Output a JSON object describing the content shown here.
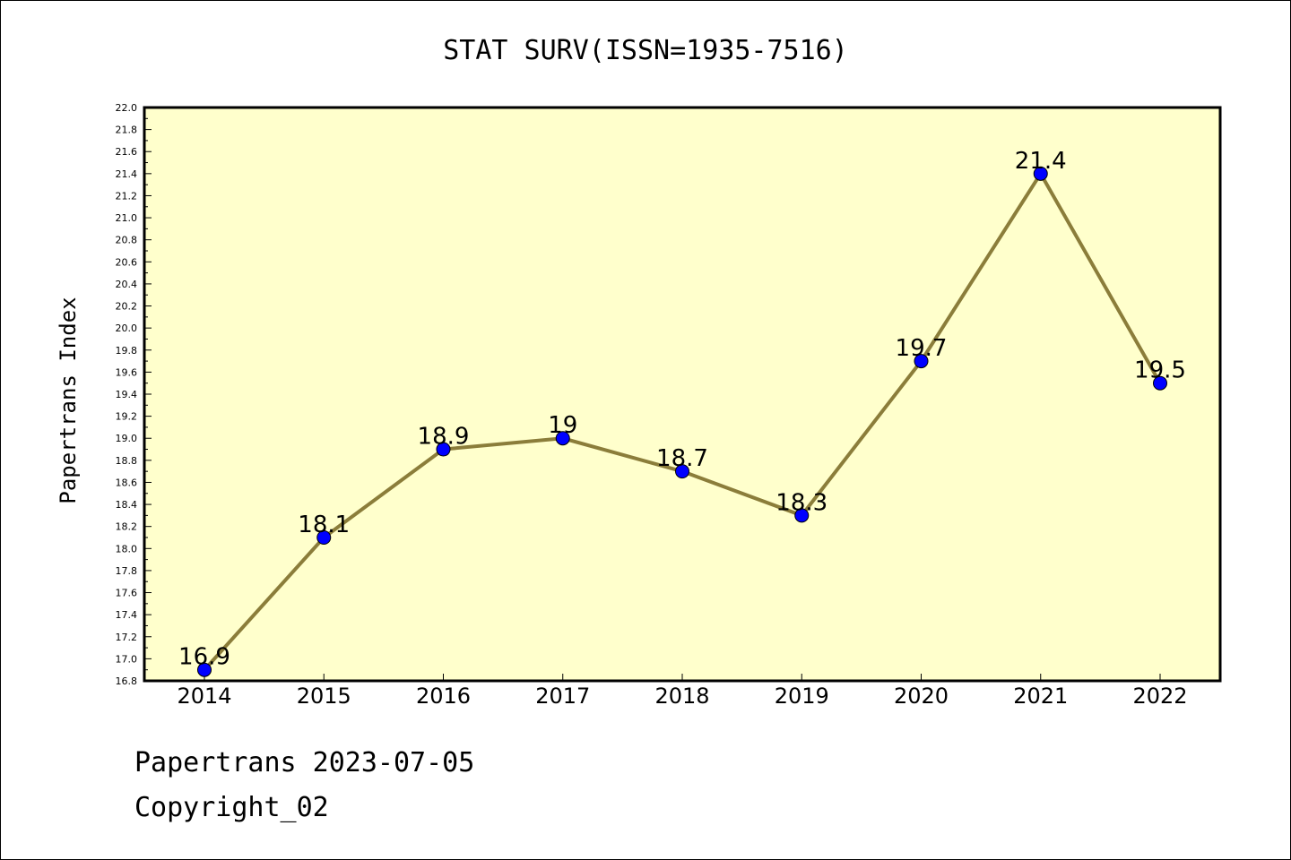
{
  "chart_data": {
    "type": "line",
    "title": "STAT SURV(ISSN=1935-7516)",
    "xlabel": "",
    "ylabel": "Papertrans Index",
    "categories": [
      "2014",
      "2015",
      "2016",
      "2017",
      "2018",
      "2019",
      "2020",
      "2021",
      "2022"
    ],
    "values": [
      16.9,
      18.1,
      18.9,
      19.0,
      18.7,
      18.3,
      19.7,
      21.4,
      19.5
    ],
    "data_labels": [
      "16.9",
      "18.1",
      "18.9",
      "19",
      "18.7",
      "18.3",
      "19.7",
      "21.4",
      "19.5"
    ],
    "ylim": [
      16.8,
      22.0
    ],
    "yticks": [
      "16.8",
      "17.0",
      "17.2",
      "17.4",
      "17.6",
      "17.8",
      "18.0",
      "18.2",
      "18.4",
      "18.6",
      "18.8",
      "19.0",
      "19.2",
      "19.4",
      "19.6",
      "19.8",
      "20.0",
      "20.2",
      "20.4",
      "20.6",
      "20.8",
      "21.0",
      "21.2",
      "21.4",
      "21.6",
      "21.8",
      "22.0"
    ],
    "grid": false,
    "legend": "none",
    "colors": {
      "plot_background": "#FFFFCC",
      "line": "#8B7D3A",
      "marker": "#0000FF"
    }
  },
  "footer": {
    "line1": "Papertrans 2023-07-05",
    "line2": "Copyright_02"
  }
}
